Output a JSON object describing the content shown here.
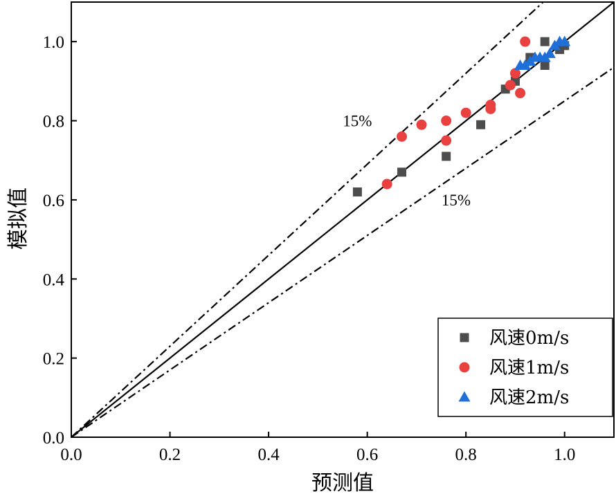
{
  "chart_data": {
    "type": "scatter",
    "title": "",
    "xlabel": "预测值",
    "ylabel": "模拟值",
    "xlim": [
      0,
      1.1
    ],
    "ylim": [
      0,
      1.1
    ],
    "xticks": [
      0.0,
      0.2,
      0.4,
      0.6,
      0.8,
      1.0
    ],
    "yticks": [
      0.0,
      0.2,
      0.4,
      0.6,
      0.8,
      1.0
    ],
    "xtick_labels": [
      "0.0",
      "0.2",
      "0.4",
      "0.6",
      "0.8",
      "1.0"
    ],
    "ytick_labels": [
      "0.0",
      "0.2",
      "0.4",
      "0.6",
      "0.8",
      "1.0"
    ],
    "grid": false,
    "legend_position": "bottom-right",
    "reference_lines": [
      {
        "name": "y=x",
        "slope": 1.0,
        "style": "solid"
      },
      {
        "name": "+15%",
        "slope": 1.15,
        "style": "dashdot"
      },
      {
        "name": "-15%",
        "slope": 0.85,
        "style": "dashdot"
      }
    ],
    "annotations": [
      {
        "text": "15%",
        "x": 0.58,
        "y": 0.8
      },
      {
        "text": "15%",
        "x": 0.78,
        "y": 0.6
      }
    ],
    "series": [
      {
        "name": "风速0m/s",
        "marker": "square",
        "color": "#4d4d4d",
        "points": [
          [
            0.58,
            0.62
          ],
          [
            0.67,
            0.67
          ],
          [
            0.76,
            0.71
          ],
          [
            0.83,
            0.79
          ],
          [
            0.88,
            0.88
          ],
          [
            0.9,
            0.9
          ],
          [
            0.93,
            0.96
          ],
          [
            0.96,
            0.94
          ],
          [
            0.96,
            1.0
          ],
          [
            0.99,
            0.98
          ],
          [
            1.0,
            0.99
          ]
        ]
      },
      {
        "name": "风速1m/s",
        "marker": "circle",
        "color": "#e8413f",
        "points": [
          [
            0.64,
            0.64
          ],
          [
            0.67,
            0.76
          ],
          [
            0.71,
            0.79
          ],
          [
            0.76,
            0.8
          ],
          [
            0.76,
            0.75
          ],
          [
            0.8,
            0.82
          ],
          [
            0.85,
            0.84
          ],
          [
            0.85,
            0.83
          ],
          [
            0.89,
            0.89
          ],
          [
            0.9,
            0.92
          ],
          [
            0.91,
            0.87
          ],
          [
            0.92,
            1.0
          ]
        ]
      },
      {
        "name": "风速2m/s",
        "marker": "triangle",
        "color": "#1f6fd8",
        "points": [
          [
            0.91,
            0.94
          ],
          [
            0.92,
            0.94
          ],
          [
            0.93,
            0.95
          ],
          [
            0.94,
            0.96
          ],
          [
            0.95,
            0.96
          ],
          [
            0.96,
            0.96
          ],
          [
            0.97,
            0.97
          ],
          [
            0.98,
            0.99
          ],
          [
            0.99,
            1.0
          ],
          [
            1.0,
            1.0
          ]
        ]
      }
    ]
  }
}
